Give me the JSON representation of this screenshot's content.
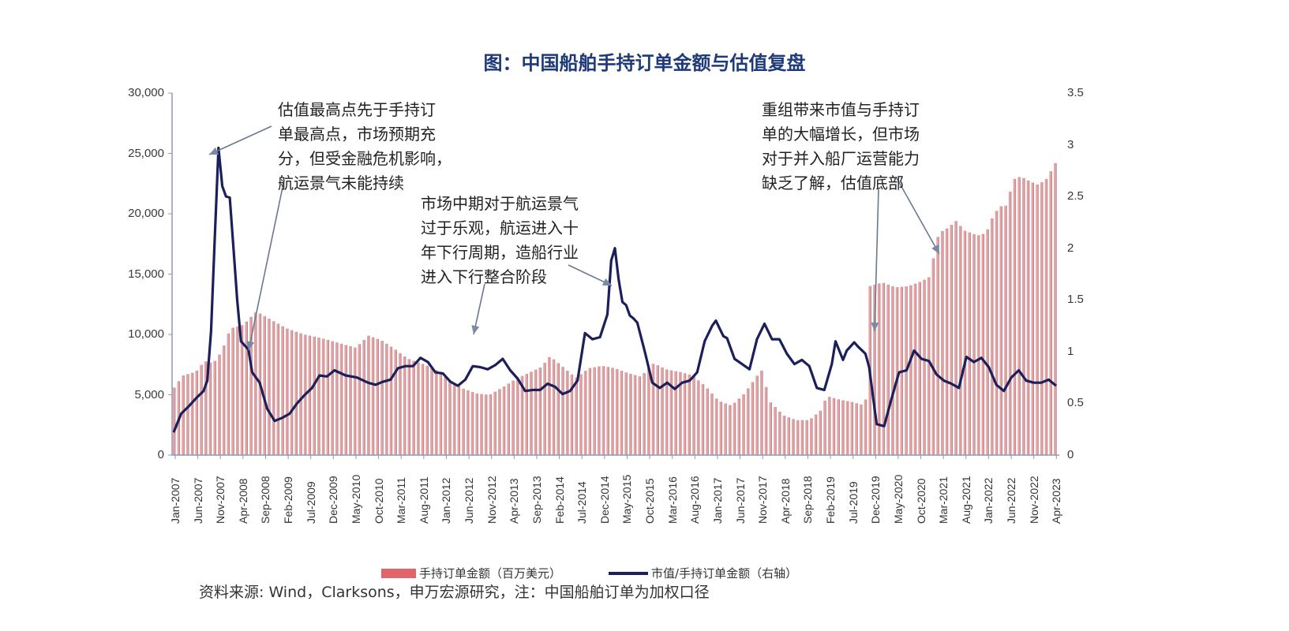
{
  "title": "图：中国船舶手持订单金额与估值复盘",
  "left_axis_ticks": [
    "30,000",
    "25,000",
    "20,000",
    "15,000",
    "10,000",
    "5,000",
    "0"
  ],
  "right_axis_ticks": [
    "3.5",
    "3",
    "2.5",
    "2",
    "1.5",
    "1",
    "0.5",
    "0"
  ],
  "annotations": [
    {
      "text": "估值最高点先于手持订\n单最高点，市场预期充\n分，但受金融危机影响，\n航运景气未能持续"
    },
    {
      "text": "市场中期对于航运景气\n过于乐观，航运进入十\n年下行周期，造船行业\n进入下行整合阶段"
    },
    {
      "text": "重组带来市值与手持订\n单的大幅增长，但市场\n对于并入船厂运营能力\n缺乏了解，估值底部"
    }
  ],
  "legend": {
    "bar_label": "手持订单金额（百万美元）",
    "line_label": "市值/手持订单金额（右轴）"
  },
  "source": "资料来源: Wind，Clarksons，申万宏源研究，注：中国船舶订单为加权口径",
  "colors": {
    "bar": "#e8a0a3",
    "bar_edge": "#9a8a8c",
    "line": "#1b1f5a",
    "title": "#1f3a78",
    "axis": "#8a9ab8"
  },
  "chart_data": {
    "type": "bar+line",
    "title": "图：中国船舶手持订单金额与估值复盘",
    "xlabel": "",
    "ylabel_left": "手持订单金额（百万美元）",
    "ylabel_right": "市值/手持订单金额（右轴）",
    "ylim_left": [
      0,
      30000
    ],
    "ylim_right": [
      0,
      3.5
    ],
    "grid": false,
    "legend_position": "bottom",
    "x_start": "Jan-2007",
    "x_end": "Apr-2023",
    "x_tick_labels": [
      "Jan-2007",
      "Jun-2007",
      "Nov-2007",
      "Apr-2008",
      "Sep-2008",
      "Feb-2009",
      "Jul-2009",
      "Dec-2009",
      "May-2010",
      "Oct-2010",
      "Mar-2011",
      "Aug-2011",
      "Jan-2012",
      "Jun-2012",
      "Nov-2012",
      "Apr-2013",
      "Sep-2013",
      "Feb-2014",
      "Jul-2014",
      "Dec-2014",
      "May-2015",
      "Oct-2015",
      "Mar-2016",
      "Aug-2016",
      "Jan-2017",
      "Jun-2017",
      "Nov-2017",
      "Apr-2018",
      "Sep-2018",
      "Feb-2019",
      "Jul-2019",
      "Dec-2019",
      "May-2020",
      "Oct-2020",
      "Mar-2021",
      "Aug-2021",
      "Jan-2022",
      "Jun-2022",
      "Nov-2022",
      "Apr-2023"
    ],
    "series": [
      {
        "name": "手持订单金额（百万美元）",
        "axis": "left",
        "type": "bar",
        "anchors": [
          [
            0,
            5600
          ],
          [
            2,
            6600
          ],
          [
            5,
            6900
          ],
          [
            7,
            7800
          ],
          [
            9,
            7600
          ],
          [
            11,
            8600
          ],
          [
            13,
            10500
          ],
          [
            16,
            10800
          ],
          [
            19,
            11900
          ],
          [
            22,
            11300
          ],
          [
            26,
            10500
          ],
          [
            30,
            10000
          ],
          [
            34,
            9700
          ],
          [
            38,
            9300
          ],
          [
            42,
            8900
          ],
          [
            45,
            9900
          ],
          [
            48,
            9500
          ],
          [
            51,
            8800
          ],
          [
            54,
            8000
          ],
          [
            58,
            7500
          ],
          [
            61,
            7000
          ],
          [
            64,
            6100
          ],
          [
            67,
            5500
          ],
          [
            70,
            5100
          ],
          [
            73,
            5000
          ],
          [
            76,
            5600
          ],
          [
            79,
            6300
          ],
          [
            82,
            6800
          ],
          [
            85,
            7300
          ],
          [
            87,
            8200
          ],
          [
            90,
            7300
          ],
          [
            93,
            6400
          ],
          [
            96,
            7200
          ],
          [
            99,
            7400
          ],
          [
            102,
            7200
          ],
          [
            105,
            6800
          ],
          [
            108,
            6500
          ],
          [
            111,
            7600
          ],
          [
            114,
            7100
          ],
          [
            117,
            6900
          ],
          [
            120,
            6600
          ],
          [
            123,
            5700
          ],
          [
            126,
            4500
          ],
          [
            129,
            4100
          ],
          [
            132,
            5100
          ],
          [
            135,
            6600
          ],
          [
            136,
            7000
          ],
          [
            138,
            4400
          ],
          [
            141,
            3300
          ],
          [
            144,
            2900
          ],
          [
            147,
            2900
          ],
          [
            150,
            3800
          ],
          [
            151,
            4900
          ],
          [
            154,
            4600
          ],
          [
            157,
            4400
          ],
          [
            159,
            4200
          ],
          [
            160,
            4000
          ],
          [
            161,
            14000
          ],
          [
            164,
            14300
          ],
          [
            167,
            13900
          ],
          [
            170,
            14000
          ],
          [
            173,
            14400
          ],
          [
            175,
            14800
          ],
          [
            176,
            16800
          ],
          [
            177,
            18400
          ],
          [
            179,
            18800
          ],
          [
            181,
            19400
          ],
          [
            183,
            18600
          ],
          [
            186,
            18200
          ],
          [
            188,
            18400
          ],
          [
            189,
            19400
          ],
          [
            191,
            20600
          ],
          [
            193,
            20700
          ],
          [
            194,
            22800
          ],
          [
            196,
            23100
          ],
          [
            198,
            22700
          ],
          [
            200,
            22400
          ],
          [
            202,
            22900
          ],
          [
            204,
            24200
          ]
        ]
      },
      {
        "name": "市值/手持订单金额（右轴）",
        "axis": "right",
        "type": "line",
        "anchors": [
          [
            0,
            0.22
          ],
          [
            2,
            0.4
          ],
          [
            4,
            0.47
          ],
          [
            6,
            0.55
          ],
          [
            8,
            0.62
          ],
          [
            9,
            0.72
          ],
          [
            10,
            1.2
          ],
          [
            11,
            2.1
          ],
          [
            12,
            2.97
          ],
          [
            13,
            2.6
          ],
          [
            14,
            2.5
          ],
          [
            15,
            2.49
          ],
          [
            16,
            2.0
          ],
          [
            17,
            1.5
          ],
          [
            18,
            1.1
          ],
          [
            20,
            1.02
          ],
          [
            21,
            0.8
          ],
          [
            23,
            0.7
          ],
          [
            25,
            0.45
          ],
          [
            27,
            0.33
          ],
          [
            29,
            0.36
          ],
          [
            31,
            0.4
          ],
          [
            33,
            0.5
          ],
          [
            35,
            0.58
          ],
          [
            37,
            0.65
          ],
          [
            39,
            0.77
          ],
          [
            41,
            0.76
          ],
          [
            43,
            0.82
          ],
          [
            46,
            0.77
          ],
          [
            49,
            0.75
          ],
          [
            52,
            0.7
          ],
          [
            54,
            0.68
          ],
          [
            56,
            0.71
          ],
          [
            58,
            0.73
          ],
          [
            60,
            0.84
          ],
          [
            62,
            0.86
          ],
          [
            64,
            0.86
          ],
          [
            66,
            0.94
          ],
          [
            68,
            0.9
          ],
          [
            70,
            0.8
          ],
          [
            72,
            0.79
          ],
          [
            74,
            0.71
          ],
          [
            76,
            0.67
          ],
          [
            78,
            0.73
          ],
          [
            80,
            0.86
          ],
          [
            82,
            0.85
          ],
          [
            84,
            0.83
          ],
          [
            86,
            0.87
          ],
          [
            88,
            0.93
          ],
          [
            90,
            0.82
          ],
          [
            92,
            0.74
          ],
          [
            94,
            0.62
          ],
          [
            96,
            0.63
          ],
          [
            98,
            0.63
          ],
          [
            100,
            0.69
          ],
          [
            102,
            0.66
          ],
          [
            104,
            0.59
          ],
          [
            106,
            0.62
          ],
          [
            108,
            0.72
          ],
          [
            110,
            1.18
          ],
          [
            112,
            1.12
          ],
          [
            114,
            1.14
          ],
          [
            116,
            1.36
          ],
          [
            117,
            1.88
          ],
          [
            118,
            2.0
          ],
          [
            119,
            1.7
          ],
          [
            120,
            1.48
          ],
          [
            121,
            1.45
          ],
          [
            122,
            1.35
          ],
          [
            123,
            1.32
          ],
          [
            124,
            1.28
          ],
          [
            126,
            1.0
          ],
          [
            128,
            0.7
          ],
          [
            130,
            0.65
          ],
          [
            132,
            0.7
          ],
          [
            134,
            0.64
          ],
          [
            136,
            0.7
          ],
          [
            138,
            0.72
          ],
          [
            140,
            0.8
          ],
          [
            142,
            1.1
          ],
          [
            144,
            1.25
          ],
          [
            145,
            1.3
          ],
          [
            147,
            1.15
          ],
          [
            148,
            1.13
          ],
          [
            150,
            0.93
          ],
          [
            152,
            0.88
          ],
          [
            154,
            0.83
          ],
          [
            156,
            1.12
          ],
          [
            158,
            1.27
          ],
          [
            160,
            1.12
          ],
          [
            162,
            1.12
          ],
          [
            164,
            0.98
          ],
          [
            166,
            0.88
          ],
          [
            168,
            0.92
          ],
          [
            170,
            0.86
          ],
          [
            172,
            0.65
          ],
          [
            174,
            0.63
          ],
          [
            176,
            0.88
          ],
          [
            177,
            1.1
          ],
          [
            179,
            0.92
          ],
          [
            180,
            1.01
          ],
          [
            182,
            1.09
          ],
          [
            183,
            1.05
          ],
          [
            185,
            0.98
          ],
          [
            186,
            0.85
          ],
          [
            188,
            0.3
          ],
          [
            190,
            0.28
          ],
          [
            192,
            0.55
          ],
          [
            194,
            0.8
          ],
          [
            196,
            0.82
          ],
          [
            198,
            1.01
          ],
          [
            200,
            0.93
          ],
          [
            202,
            0.91
          ],
          [
            204,
            0.78
          ],
          [
            206,
            0.72
          ],
          [
            208,
            0.69
          ],
          [
            210,
            0.65
          ],
          [
            212,
            0.95
          ],
          [
            214,
            0.9
          ],
          [
            216,
            0.94
          ],
          [
            218,
            0.85
          ],
          [
            220,
            0.68
          ],
          [
            222,
            0.62
          ],
          [
            224,
            0.75
          ],
          [
            226,
            0.82
          ],
          [
            228,
            0.72
          ],
          [
            230,
            0.7
          ],
          [
            232,
            0.7
          ],
          [
            234,
            0.73
          ],
          [
            236,
            0.67
          ]
        ]
      }
    ],
    "notes": "Anchors are [month_index_in_plot_units, value] estimated from pixel positions; plot spans Jan-2007 to Apr-2023 monthly. Bars use left axis (millions USD), line uses right axis (valuation ratio)."
  }
}
